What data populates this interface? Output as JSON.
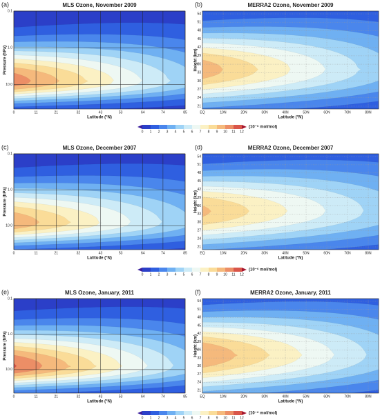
{
  "chart_data": [
    {
      "type": "contour",
      "panel_label": "(a)",
      "title": "MLS Ozone, November 2009",
      "xlabel": "Latitude (°N)",
      "ylabel": "Pressure (hPa)",
      "xlim": [
        0,
        85
      ],
      "xticks": [
        0,
        11,
        21,
        32,
        43,
        53,
        64,
        74,
        85
      ],
      "ylim": [
        0.1,
        46
      ],
      "yticks": [
        {
          "value": 0.1,
          "label": "0.1"
        },
        {
          "value": 1,
          "label": "1.0"
        },
        {
          "value": 10,
          "label": "10.0"
        }
      ],
      "log_y": true,
      "y_inverted": true,
      "grid": "solid"
    },
    {
      "type": "contour",
      "panel_label": "(b)",
      "title": "MERRA2 Ozone, November 2009",
      "xlabel": "Latitude (°N)",
      "ylabel": "Height (km)",
      "xlim": [
        0,
        85
      ],
      "xticks": [
        {
          "value": 0,
          "label": "EQ"
        },
        {
          "value": 10,
          "label": "10N"
        },
        {
          "value": 20,
          "label": "20N"
        },
        {
          "value": 30,
          "label": "30N"
        },
        {
          "value": 40,
          "label": "40N"
        },
        {
          "value": 50,
          "label": "50N"
        },
        {
          "value": 60,
          "label": "60N"
        },
        {
          "value": 70,
          "label": "70N"
        },
        {
          "value": 80,
          "label": "80N"
        }
      ],
      "ylim": [
        20,
        55
      ],
      "yticks": [
        21,
        24,
        27,
        30,
        33,
        36,
        39,
        42,
        45,
        48,
        51,
        54
      ],
      "log_y": false,
      "y_inverted": false,
      "grid": "dotted"
    },
    {
      "type": "contour",
      "panel_label": "(c)",
      "title": "MLS Ozone, December 2007",
      "xlabel": "Latitude (°N)",
      "ylabel": "Pressure (hPa)",
      "xlim": [
        0,
        85
      ],
      "xticks": [
        0,
        11,
        21,
        32,
        43,
        53,
        64,
        74,
        85
      ],
      "ylim": [
        0.1,
        46
      ],
      "yticks": [
        {
          "value": 0.1,
          "label": "0.1"
        },
        {
          "value": 1,
          "label": "1.0"
        },
        {
          "value": 10,
          "label": "10.0"
        }
      ],
      "log_y": true,
      "y_inverted": true,
      "grid": "solid"
    },
    {
      "type": "contour",
      "panel_label": "(d)",
      "title": "MERRA2 Ozone, December 2007",
      "xlabel": "Latitude (°N)",
      "ylabel": "Height (km)",
      "xlim": [
        0,
        85
      ],
      "xticks": [
        {
          "value": 0,
          "label": "EQ"
        },
        {
          "value": 10,
          "label": "10N"
        },
        {
          "value": 20,
          "label": "20N"
        },
        {
          "value": 30,
          "label": "30N"
        },
        {
          "value": 40,
          "label": "40N"
        },
        {
          "value": 50,
          "label": "50N"
        },
        {
          "value": 60,
          "label": "60N"
        },
        {
          "value": 70,
          "label": "70N"
        },
        {
          "value": 80,
          "label": "80N"
        }
      ],
      "ylim": [
        20,
        55
      ],
      "yticks": [
        21,
        24,
        27,
        30,
        33,
        36,
        39,
        42,
        45,
        48,
        51,
        54
      ],
      "log_y": false,
      "y_inverted": false,
      "grid": "dotted"
    },
    {
      "type": "contour",
      "panel_label": "(e)",
      "title": "MLS Ozone, January, 2011",
      "xlabel": "Latitude (°N)",
      "ylabel": "Pressure (hPa)",
      "xlim": [
        0,
        85
      ],
      "xticks": [
        0,
        11,
        21,
        32,
        43,
        53,
        64,
        74,
        85
      ],
      "ylim": [
        0.1,
        46
      ],
      "yticks": [
        {
          "value": 0.1,
          "label": "0.1"
        },
        {
          "value": 1,
          "label": "1.0"
        },
        {
          "value": 10,
          "label": "10.0"
        }
      ],
      "log_y": true,
      "y_inverted": true,
      "grid": "solid"
    },
    {
      "type": "contour",
      "panel_label": "(f)",
      "title": "MERRA2 Ozone, January, 2011",
      "xlabel": "Latitude (°N)",
      "ylabel": "Height (km)",
      "xlim": [
        0,
        85
      ],
      "xticks": [
        {
          "value": 0,
          "label": "EQ"
        },
        {
          "value": 10,
          "label": "10N"
        },
        {
          "value": 20,
          "label": "20N"
        },
        {
          "value": 30,
          "label": "30N"
        },
        {
          "value": 40,
          "label": "40N"
        },
        {
          "value": 50,
          "label": "50N"
        },
        {
          "value": 60,
          "label": "60N"
        },
        {
          "value": 70,
          "label": "70N"
        },
        {
          "value": 80,
          "label": "80N"
        }
      ],
      "ylim": [
        20,
        55
      ],
      "yticks": [
        21,
        24,
        27,
        30,
        33,
        36,
        39,
        42,
        45,
        48,
        51,
        54
      ],
      "log_y": false,
      "y_inverted": false,
      "grid": "dotted"
    }
  ],
  "colorbar": {
    "levels": [
      0,
      1,
      2,
      3,
      4,
      5,
      6,
      7,
      8,
      9,
      10,
      11,
      12
    ],
    "label": "(10⁻⁶ mol/mol)",
    "colors": [
      "#3b1f9e",
      "#2b3fc8",
      "#2f5fe0",
      "#4a86ec",
      "#6fb0f2",
      "#9fd3f6",
      "#cdebf7",
      "#eef8f3",
      "#fbf1c4",
      "#fadc98",
      "#f5b97c",
      "#ec8e66",
      "#d9564a",
      "#a5162e"
    ]
  }
}
